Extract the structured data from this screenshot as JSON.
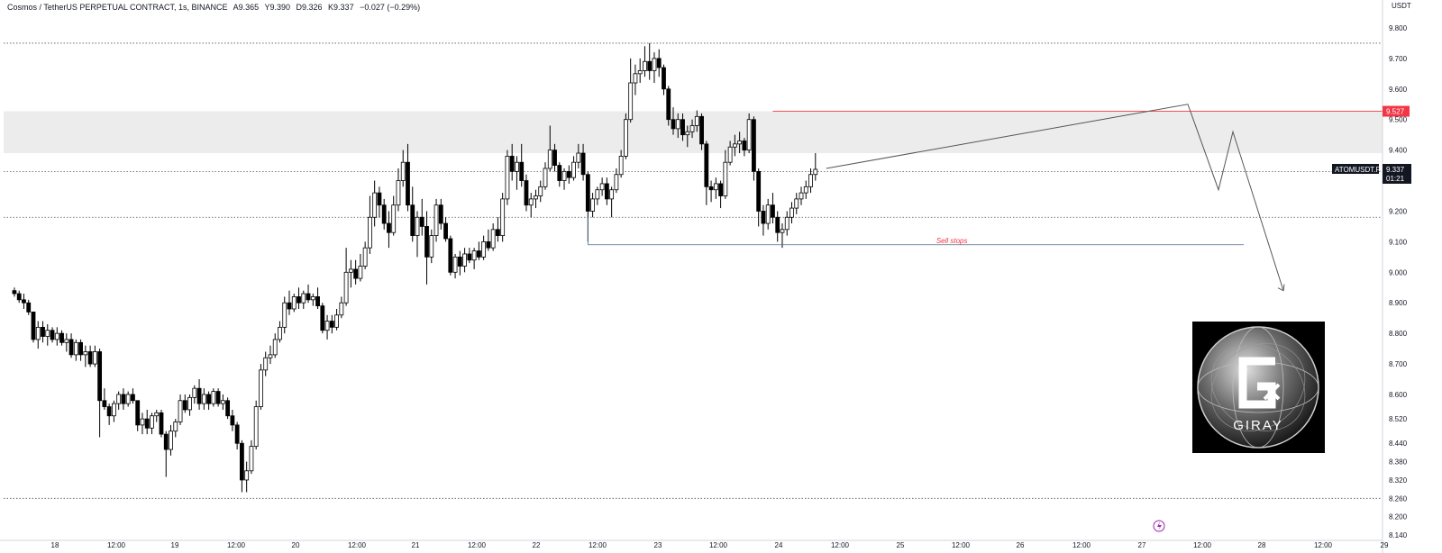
{
  "header": {
    "symbol_name": "Cosmos / TetherUS PERPETUAL CONTRACT, 1s, BINANCE",
    "open": "A9.365",
    "high": "Y9.390",
    "low": "D9.326",
    "close": "K9.337",
    "change": "−0.027 (−0.29%)"
  },
  "currency_label": "USDT",
  "ticker_label": "ATOMUSDT.P",
  "last_price": "9.337",
  "countdown": "01:21",
  "level_price": "9.527",
  "annotation": "Sell stops",
  "watermark_text": "GIRAY",
  "colors": {
    "bull": "#ffffff",
    "bear": "#000000",
    "wick": "#000000",
    "zone": "#ececec",
    "red_line": "#f23645",
    "blue_line": "#4a6c8f",
    "projection": "#555555",
    "lightning": "#9c27b0"
  },
  "chart_data": {
    "type": "candlestick",
    "ylim": [
      8.14,
      9.85
    ],
    "yticks": [
      "9.800",
      "9.700",
      "9.600",
      "9.500",
      "9.400",
      "9.300",
      "9.200",
      "9.100",
      "9.000",
      "8.900",
      "8.800",
      "8.700",
      "8.600",
      "8.520",
      "8.440",
      "8.380",
      "8.320",
      "8.260",
      "8.200",
      "8.140"
    ],
    "xticks": [
      "18",
      "12:00",
      "19",
      "12:00",
      "20",
      "12:00",
      "21",
      "12:00",
      "22",
      "12:00",
      "23",
      "12:00",
      "24",
      "12:00",
      "25",
      "12:00",
      "26",
      "12:00",
      "27",
      "12:00",
      "28",
      "12:00",
      "29"
    ],
    "xtick_slots": [
      9,
      21,
      35,
      49,
      63,
      77,
      91,
      105,
      119,
      133,
      147,
      161,
      175,
      189,
      203,
      217,
      231,
      245,
      259,
      273,
      287,
      301,
      315
    ],
    "n_slots": 320,
    "resistance_zone": [
      9.39,
      9.527
    ],
    "horizontal_levels": [
      9.75,
      9.33,
      9.18,
      8.26
    ],
    "red_level": 9.527,
    "sell_stops_level": 9.09,
    "candles": [
      [
        8.94,
        8.95,
        8.92,
        8.93
      ],
      [
        8.93,
        8.94,
        8.9,
        8.91
      ],
      [
        8.91,
        8.93,
        8.88,
        8.9
      ],
      [
        8.9,
        8.91,
        8.86,
        8.87
      ],
      [
        8.87,
        8.87,
        8.77,
        8.78
      ],
      [
        8.78,
        8.84,
        8.75,
        8.82
      ],
      [
        8.82,
        8.84,
        8.77,
        8.79
      ],
      [
        8.79,
        8.83,
        8.76,
        8.81
      ],
      [
        8.81,
        8.82,
        8.77,
        8.78
      ],
      [
        8.78,
        8.82,
        8.76,
        8.8
      ],
      [
        8.8,
        8.81,
        8.76,
        8.77
      ],
      [
        8.77,
        8.8,
        8.74,
        8.78
      ],
      [
        8.78,
        8.8,
        8.72,
        8.73
      ],
      [
        8.73,
        8.78,
        8.71,
        8.77
      ],
      [
        8.77,
        8.78,
        8.71,
        8.73
      ],
      [
        8.73,
        8.76,
        8.69,
        8.74
      ],
      [
        8.74,
        8.76,
        8.69,
        8.7
      ],
      [
        8.7,
        8.76,
        8.69,
        8.74
      ],
      [
        8.74,
        8.75,
        8.46,
        8.58
      ],
      [
        8.58,
        8.62,
        8.55,
        8.56
      ],
      [
        8.56,
        8.57,
        8.5,
        8.53
      ],
      [
        8.53,
        8.58,
        8.51,
        8.57
      ],
      [
        8.57,
        8.61,
        8.55,
        8.6
      ],
      [
        8.6,
        8.62,
        8.55,
        8.57
      ],
      [
        8.57,
        8.61,
        8.56,
        8.6
      ],
      [
        8.6,
        8.62,
        8.57,
        8.58
      ],
      [
        8.58,
        8.58,
        8.48,
        8.5
      ],
      [
        8.5,
        8.54,
        8.47,
        8.52
      ],
      [
        8.52,
        8.55,
        8.47,
        8.49
      ],
      [
        8.49,
        8.54,
        8.47,
        8.53
      ],
      [
        8.53,
        8.55,
        8.51,
        8.54
      ],
      [
        8.54,
        8.55,
        8.46,
        8.47
      ],
      [
        8.47,
        8.48,
        8.33,
        8.42
      ],
      [
        8.42,
        8.5,
        8.4,
        8.48
      ],
      [
        8.48,
        8.52,
        8.46,
        8.51
      ],
      [
        8.51,
        8.6,
        8.5,
        8.58
      ],
      [
        8.58,
        8.6,
        8.54,
        8.55
      ],
      [
        8.55,
        8.6,
        8.53,
        8.59
      ],
      [
        8.59,
        8.63,
        8.57,
        8.62
      ],
      [
        8.62,
        8.65,
        8.55,
        8.57
      ],
      [
        8.57,
        8.62,
        8.55,
        8.6
      ],
      [
        8.6,
        8.61,
        8.55,
        8.57
      ],
      [
        8.57,
        8.62,
        8.56,
        8.61
      ],
      [
        8.61,
        8.62,
        8.56,
        8.57
      ],
      [
        8.57,
        8.6,
        8.55,
        8.58
      ],
      [
        8.58,
        8.59,
        8.52,
        8.53
      ],
      [
        8.53,
        8.55,
        8.48,
        8.5
      ],
      [
        8.5,
        8.51,
        8.42,
        8.44
      ],
      [
        8.44,
        8.45,
        8.28,
        8.32
      ],
      [
        8.32,
        8.38,
        8.28,
        8.35
      ],
      [
        8.35,
        8.45,
        8.34,
        8.43
      ],
      [
        8.43,
        8.58,
        8.42,
        8.56
      ],
      [
        8.56,
        8.7,
        8.55,
        8.68
      ],
      [
        8.68,
        8.74,
        8.66,
        8.72
      ],
      [
        8.72,
        8.76,
        8.7,
        8.73
      ],
      [
        8.73,
        8.8,
        8.72,
        8.78
      ],
      [
        8.78,
        8.84,
        8.77,
        8.82
      ],
      [
        8.82,
        8.92,
        8.8,
        8.9
      ],
      [
        8.9,
        8.94,
        8.86,
        8.88
      ],
      [
        8.88,
        8.93,
        8.87,
        8.92
      ],
      [
        8.92,
        8.95,
        8.88,
        8.9
      ],
      [
        8.9,
        8.94,
        8.88,
        8.93
      ],
      [
        8.93,
        8.96,
        8.9,
        8.91
      ],
      [
        8.91,
        8.93,
        8.89,
        8.92
      ],
      [
        8.92,
        8.95,
        8.88,
        8.89
      ],
      [
        8.89,
        8.9,
        8.8,
        8.81
      ],
      [
        8.81,
        8.86,
        8.78,
        8.84
      ],
      [
        8.84,
        8.86,
        8.8,
        8.82
      ],
      [
        8.82,
        8.88,
        8.81,
        8.86
      ],
      [
        8.86,
        8.92,
        8.85,
        8.9
      ],
      [
        8.9,
        9.08,
        8.89,
        9.0
      ],
      [
        9.0,
        9.04,
        8.95,
        9.01
      ],
      [
        9.01,
        9.04,
        8.96,
        8.98
      ],
      [
        8.98,
        9.06,
        8.97,
        9.02
      ],
      [
        9.02,
        9.1,
        9.01,
        9.08
      ],
      [
        9.08,
        9.25,
        9.06,
        9.18
      ],
      [
        9.18,
        9.3,
        9.15,
        9.26
      ],
      [
        9.26,
        9.28,
        9.18,
        9.22
      ],
      [
        9.22,
        9.24,
        9.14,
        9.16
      ],
      [
        9.16,
        9.2,
        9.08,
        9.13
      ],
      [
        9.13,
        9.25,
        9.12,
        9.22
      ],
      [
        9.22,
        9.34,
        9.2,
        9.3
      ],
      [
        9.3,
        9.4,
        9.28,
        9.36
      ],
      [
        9.36,
        9.42,
        9.2,
        9.22
      ],
      [
        9.22,
        9.28,
        9.1,
        9.12
      ],
      [
        9.12,
        9.2,
        9.05,
        9.18
      ],
      [
        9.18,
        9.24,
        9.12,
        9.15
      ],
      [
        9.15,
        9.2,
        8.96,
        9.05
      ],
      [
        9.05,
        9.14,
        9.03,
        9.12
      ],
      [
        9.12,
        9.24,
        9.1,
        9.22
      ],
      [
        9.22,
        9.24,
        9.14,
        9.16
      ],
      [
        9.16,
        9.18,
        9.1,
        9.11
      ],
      [
        9.11,
        9.12,
        8.99,
        9.0
      ],
      [
        9.0,
        9.06,
        8.98,
        9.05
      ],
      [
        9.05,
        9.07,
        8.99,
        9.02
      ],
      [
        9.02,
        9.08,
        9.0,
        9.06
      ],
      [
        9.06,
        9.08,
        9.03,
        9.04
      ],
      [
        9.04,
        9.08,
        9.01,
        9.07
      ],
      [
        9.07,
        9.1,
        9.04,
        9.05
      ],
      [
        9.05,
        9.12,
        9.04,
        9.1
      ],
      [
        9.1,
        9.14,
        9.07,
        9.08
      ],
      [
        9.08,
        9.16,
        9.07,
        9.14
      ],
      [
        9.14,
        9.18,
        9.1,
        9.12
      ],
      [
        9.12,
        9.26,
        9.1,
        9.24
      ],
      [
        9.24,
        9.4,
        9.22,
        9.38
      ],
      [
        9.38,
        9.42,
        9.3,
        9.33
      ],
      [
        9.33,
        9.38,
        9.27,
        9.36
      ],
      [
        9.36,
        9.42,
        9.28,
        9.3
      ],
      [
        9.3,
        9.32,
        9.2,
        9.22
      ],
      [
        9.22,
        9.26,
        9.18,
        9.24
      ],
      [
        9.24,
        9.27,
        9.21,
        9.25
      ],
      [
        9.25,
        9.3,
        9.23,
        9.28
      ],
      [
        9.28,
        9.36,
        9.27,
        9.34
      ],
      [
        9.34,
        9.48,
        9.33,
        9.4
      ],
      [
        9.4,
        9.42,
        9.33,
        9.35
      ],
      [
        9.35,
        9.36,
        9.28,
        9.3
      ],
      [
        9.3,
        9.34,
        9.27,
        9.33
      ],
      [
        9.33,
        9.35,
        9.29,
        9.31
      ],
      [
        9.31,
        9.38,
        9.3,
        9.36
      ],
      [
        9.36,
        9.42,
        9.34,
        9.39
      ],
      [
        9.39,
        9.42,
        9.3,
        9.32
      ],
      [
        9.32,
        9.33,
        9.1,
        9.2
      ],
      [
        9.2,
        9.26,
        9.18,
        9.24
      ],
      [
        9.24,
        9.28,
        9.22,
        9.27
      ],
      [
        9.27,
        9.31,
        9.25,
        9.29
      ],
      [
        9.29,
        9.31,
        9.22,
        9.24
      ],
      [
        9.24,
        9.28,
        9.18,
        9.27
      ],
      [
        9.27,
        9.34,
        9.26,
        9.32
      ],
      [
        9.32,
        9.4,
        9.31,
        9.38
      ],
      [
        9.38,
        9.52,
        9.37,
        9.5
      ],
      [
        9.5,
        9.7,
        9.49,
        9.62
      ],
      [
        9.62,
        9.68,
        9.58,
        9.65
      ],
      [
        9.65,
        9.7,
        9.62,
        9.66
      ],
      [
        9.66,
        9.74,
        9.64,
        9.69
      ],
      [
        9.69,
        9.75,
        9.63,
        9.66
      ],
      [
        9.66,
        9.72,
        9.62,
        9.7
      ],
      [
        9.7,
        9.73,
        9.64,
        9.67
      ],
      [
        9.67,
        9.68,
        9.58,
        9.6
      ],
      [
        9.6,
        9.61,
        9.48,
        9.5
      ],
      [
        9.5,
        9.54,
        9.45,
        9.47
      ],
      [
        9.47,
        9.52,
        9.44,
        9.5
      ],
      [
        9.5,
        9.52,
        9.43,
        9.45
      ],
      [
        9.45,
        9.48,
        9.41,
        9.46
      ],
      [
        9.46,
        9.5,
        9.44,
        9.48
      ],
      [
        9.48,
        9.53,
        9.46,
        9.51
      ],
      [
        9.51,
        9.52,
        9.4,
        9.42
      ],
      [
        9.42,
        9.43,
        9.22,
        9.28
      ],
      [
        9.28,
        9.3,
        9.23,
        9.27
      ],
      [
        9.27,
        9.31,
        9.24,
        9.29
      ],
      [
        9.29,
        9.3,
        9.21,
        9.25
      ],
      [
        9.25,
        9.4,
        9.24,
        9.36
      ],
      [
        9.36,
        9.43,
        9.35,
        9.41
      ],
      [
        9.41,
        9.45,
        9.38,
        9.42
      ],
      [
        9.42,
        9.46,
        9.39,
        9.43
      ],
      [
        9.43,
        9.44,
        9.38,
        9.4
      ],
      [
        9.4,
        9.52,
        9.39,
        9.5
      ],
      [
        9.5,
        9.51,
        9.3,
        9.33
      ],
      [
        9.33,
        9.34,
        9.15,
        9.2
      ],
      [
        9.2,
        9.22,
        9.12,
        9.16
      ],
      [
        9.16,
        9.24,
        9.14,
        9.22
      ],
      [
        9.22,
        9.26,
        9.16,
        9.18
      ],
      [
        9.18,
        9.2,
        9.1,
        9.13
      ],
      [
        9.13,
        9.16,
        9.08,
        9.14
      ],
      [
        9.14,
        9.2,
        9.12,
        9.18
      ],
      [
        9.18,
        9.23,
        9.16,
        9.21
      ],
      [
        9.21,
        9.26,
        9.19,
        9.24
      ],
      [
        9.24,
        9.28,
        9.22,
        9.26
      ],
      [
        9.26,
        9.3,
        9.24,
        9.28
      ],
      [
        9.28,
        9.34,
        9.26,
        9.32
      ],
      [
        9.32,
        9.39,
        9.3,
        9.337
      ]
    ],
    "projection_path": [
      [
        9.34,
        9.55
      ],
      [
        9.55,
        9.27
      ],
      [
        9.27,
        9.46
      ],
      [
        9.46,
        8.94
      ]
    ]
  }
}
